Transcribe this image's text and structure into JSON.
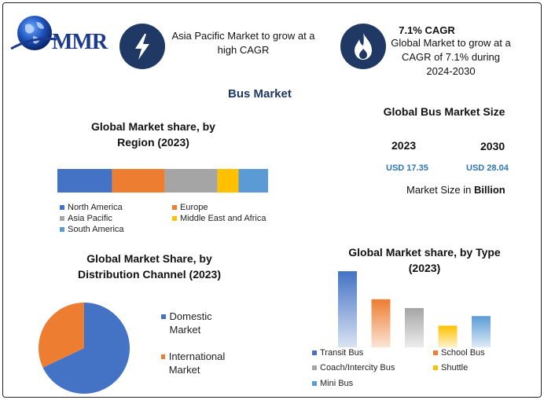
{
  "logo": {
    "text": "MMR"
  },
  "header": {
    "item1": {
      "icon": "lightning-icon",
      "text": "Asia Pacific Market to grow at a high CAGR"
    },
    "item2": {
      "icon": "flame-icon",
      "title": "7.1% CAGR",
      "text": "Global Market to grow at a CAGR of 7.1% during 2024-2030"
    }
  },
  "main_title": "Bus Market",
  "market_size": {
    "title": "Global Bus Market Size",
    "years": [
      "2023",
      "2030"
    ],
    "values": [
      "USD 17.35",
      "USD 28.04"
    ],
    "note_prefix": "Market Size in ",
    "note_bold": "Billion"
  },
  "colors": {
    "north_america": "#4472c4",
    "europe": "#ed7d31",
    "asia_pacific": "#a5a5a5",
    "mea": "#ffc000",
    "south_america": "#5b9bd5"
  },
  "chart_data": [
    {
      "type": "bar",
      "stacked": true,
      "orientation": "horizontal",
      "title": "Global Market share, by Region (2023)",
      "categories": [
        "North America",
        "Europe",
        "Asia Pacific",
        "Middle East and Africa",
        "South America"
      ],
      "values": [
        26,
        25,
        25,
        10,
        14
      ],
      "colors": [
        "#4472c4",
        "#ed7d31",
        "#a5a5a5",
        "#ffc000",
        "#5b9bd5"
      ],
      "legend": "bottom"
    },
    {
      "type": "pie",
      "title": "Global Market Share, by Distribution Channel (2023)",
      "categories": [
        "Domestic Market",
        "International Market"
      ],
      "values": [
        68,
        32
      ],
      "colors": [
        "#4472c4",
        "#ed7d31"
      ],
      "legend": "right"
    },
    {
      "type": "bar",
      "title": "Global Market share, by Type (2023)",
      "categories": [
        "Transit Bus",
        "School Bus",
        "Coach/Intercity Bus",
        "Shuttle",
        "Mini Bus"
      ],
      "values": [
        95,
        60,
        49,
        27,
        39
      ],
      "colors": [
        "#4472c4",
        "#ed7d31",
        "#a5a5a5",
        "#ffc000",
        "#5b9bd5"
      ],
      "ylim": [
        0,
        100
      ],
      "legend": "bottom"
    }
  ]
}
